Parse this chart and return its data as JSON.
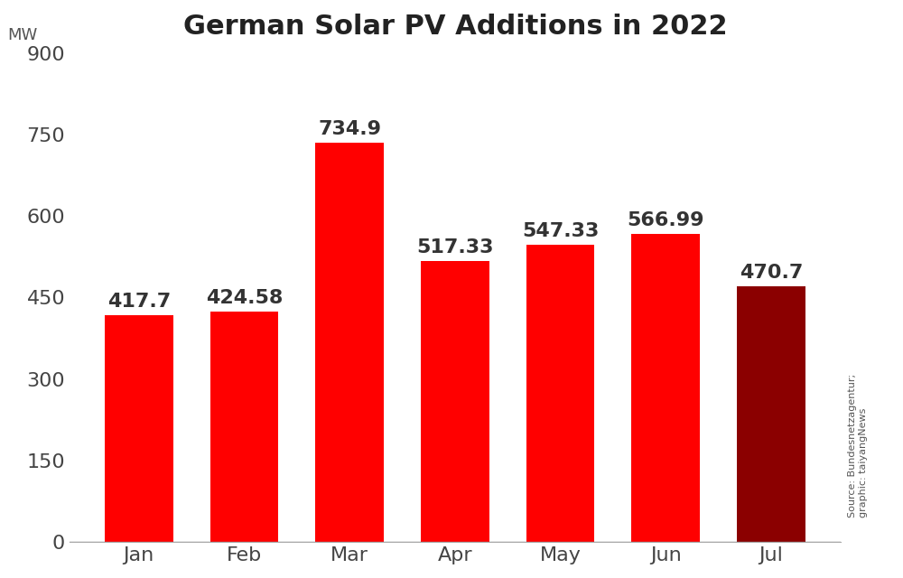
{
  "title": "German Solar PV Additions in 2022",
  "ylabel": "MW",
  "categories": [
    "Jan",
    "Feb",
    "Mar",
    "Apr",
    "May",
    "Jun",
    "Jul"
  ],
  "values": [
    417.7,
    424.58,
    734.9,
    517.33,
    547.33,
    566.99,
    470.7
  ],
  "bar_colors": [
    "#ff0000",
    "#ff0000",
    "#ff0000",
    "#ff0000",
    "#ff0000",
    "#ff0000",
    "#8b0000"
  ],
  "value_labels": [
    "417.7",
    "424.58",
    "734.9",
    "517.33",
    "547.33",
    "566.99",
    "470.7"
  ],
  "ylim": [
    0,
    900
  ],
  "yticks": [
    0,
    150,
    300,
    450,
    600,
    750,
    900
  ],
  "background_color": "#ffffff",
  "title_fontsize": 22,
  "label_fontsize": 13,
  "tick_fontsize": 16,
  "value_fontsize": 16,
  "source_text": "Source: Bundesnetzagentur;\ngraphic: taiyangNews"
}
